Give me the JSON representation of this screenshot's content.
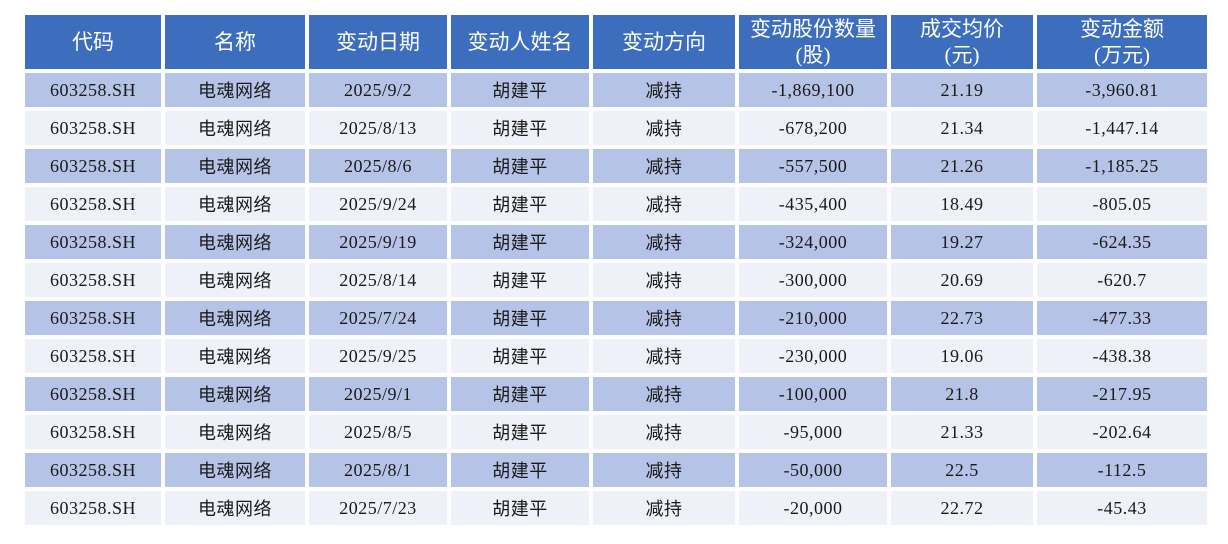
{
  "colors": {
    "header-bg": "#3D6EBE",
    "header-text": "#FFFFFF",
    "row-odd-bg": "#B5C3E7",
    "row-even-bg": "#EEF1F7",
    "body-text": "#1A1A1A",
    "page-bg": "#FFFFFF"
  },
  "chart_data": {
    "type": "table",
    "description": "Insider shareholding change records table",
    "columns": [
      {
        "key": "code",
        "label": "代码",
        "sublabel": ""
      },
      {
        "key": "name",
        "label": "名称",
        "sublabel": ""
      },
      {
        "key": "change_date",
        "label": "变动日期",
        "sublabel": ""
      },
      {
        "key": "person_name",
        "label": "变动人姓名",
        "sublabel": ""
      },
      {
        "key": "direction",
        "label": "变动方向",
        "sublabel": ""
      },
      {
        "key": "shares_changed",
        "label": "变动股份数量",
        "sublabel": "(股)"
      },
      {
        "key": "avg_price",
        "label": "成交均价",
        "sublabel": "(元)"
      },
      {
        "key": "amount",
        "label": "变动金额",
        "sublabel": "(万元)"
      }
    ],
    "rows": [
      [
        "603258.SH",
        "电魂网络",
        "2025/9/2",
        "胡建平",
        "减持",
        "-1,869,100",
        "21.19",
        "-3,960.81"
      ],
      [
        "603258.SH",
        "电魂网络",
        "2025/8/13",
        "胡建平",
        "减持",
        "-678,200",
        "21.34",
        "-1,447.14"
      ],
      [
        "603258.SH",
        "电魂网络",
        "2025/8/6",
        "胡建平",
        "减持",
        "-557,500",
        "21.26",
        "-1,185.25"
      ],
      [
        "603258.SH",
        "电魂网络",
        "2025/9/24",
        "胡建平",
        "减持",
        "-435,400",
        "18.49",
        "-805.05"
      ],
      [
        "603258.SH",
        "电魂网络",
        "2025/9/19",
        "胡建平",
        "减持",
        "-324,000",
        "19.27",
        "-624.35"
      ],
      [
        "603258.SH",
        "电魂网络",
        "2025/8/14",
        "胡建平",
        "减持",
        "-300,000",
        "20.69",
        "-620.7"
      ],
      [
        "603258.SH",
        "电魂网络",
        "2025/7/24",
        "胡建平",
        "减持",
        "-210,000",
        "22.73",
        "-477.33"
      ],
      [
        "603258.SH",
        "电魂网络",
        "2025/9/25",
        "胡建平",
        "减持",
        "-230,000",
        "19.06",
        "-438.38"
      ],
      [
        "603258.SH",
        "电魂网络",
        "2025/9/1",
        "胡建平",
        "减持",
        "-100,000",
        "21.8",
        "-217.95"
      ],
      [
        "603258.SH",
        "电魂网络",
        "2025/8/5",
        "胡建平",
        "减持",
        "-95,000",
        "21.33",
        "-202.64"
      ],
      [
        "603258.SH",
        "电魂网络",
        "2025/8/1",
        "胡建平",
        "减持",
        "-50,000",
        "22.5",
        "-112.5"
      ],
      [
        "603258.SH",
        "电魂网络",
        "2025/7/23",
        "胡建平",
        "减持",
        "-20,000",
        "22.72",
        "-45.43"
      ]
    ]
  }
}
